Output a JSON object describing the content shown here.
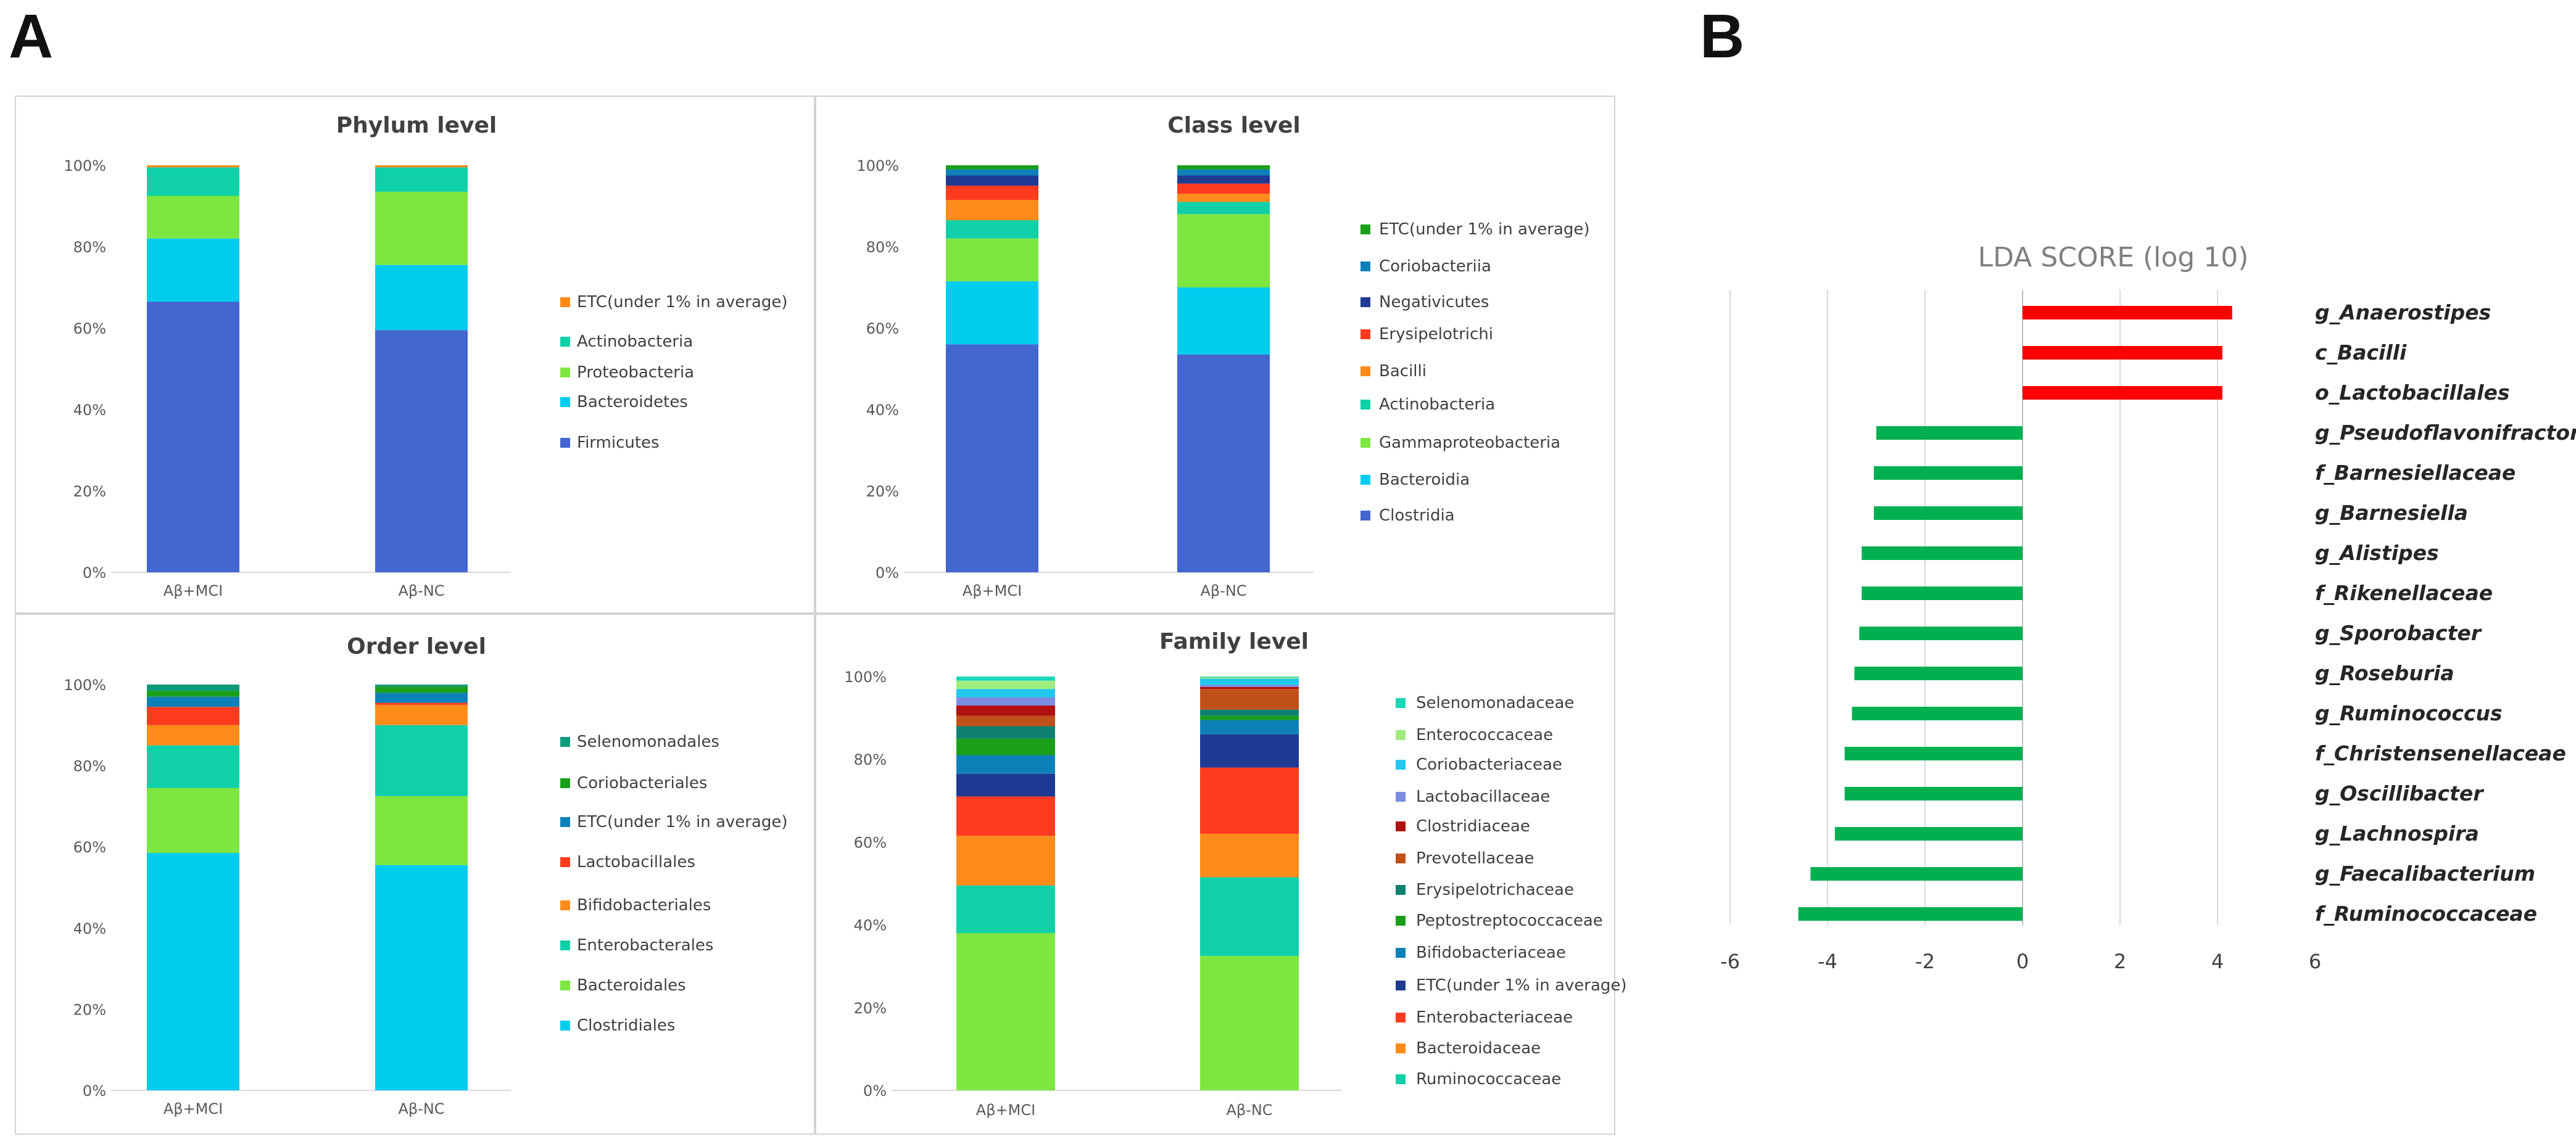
{
  "panels": {
    "a_label": "A",
    "b_label": "B"
  },
  "colors": {
    "Firmicutes": "#4466d0",
    "Bacteroidetes": "#00ccee",
    "Proteobacteria": "#7ee640",
    "Actinobacteria": "#10d0a8",
    "ETC": "#ff8c1a",
    "lda_positive": "#ff0000",
    "lda_negative": "#00b050"
  },
  "chart_data": [
    {
      "type": "bar",
      "stacked": true,
      "title": "Phylum level",
      "categories": [
        "Aβ+MCI",
        "Aβ-NC"
      ],
      "yticks": [
        "0%",
        "20%",
        "40%",
        "60%",
        "80%",
        "100%"
      ],
      "ylim": [
        0,
        100
      ],
      "series": [
        {
          "name": "Firmicutes",
          "color": "#4466d0",
          "values": [
            66.5,
            59.5
          ]
        },
        {
          "name": "Bacteroidetes",
          "color": "#00ccee",
          "values": [
            15.5,
            16.0
          ]
        },
        {
          "name": "Proteobacteria",
          "color": "#7ee640",
          "values": [
            10.5,
            18.0
          ]
        },
        {
          "name": "Actinobacteria",
          "color": "#10d0a8",
          "values": [
            7.0,
            6.0
          ]
        },
        {
          "name": "ETC(under 1% in average)",
          "color": "#ff8c1a",
          "values": [
            0.5,
            0.5
          ]
        }
      ]
    },
    {
      "type": "bar",
      "stacked": true,
      "title": "Class level",
      "categories": [
        "Aβ+MCI",
        "Aβ-NC"
      ],
      "yticks": [
        "0%",
        "20%",
        "40%",
        "60%",
        "80%",
        "100%"
      ],
      "ylim": [
        0,
        100
      ],
      "series": [
        {
          "name": "Clostridia",
          "color": "#4466d0",
          "values": [
            56.0,
            53.5
          ]
        },
        {
          "name": "Bacteroidia",
          "color": "#00ccee",
          "values": [
            15.5,
            16.5
          ]
        },
        {
          "name": "Gammaproteobacteria",
          "color": "#7ee640",
          "values": [
            10.5,
            18.0
          ]
        },
        {
          "name": "Actinobacteria",
          "color": "#10d0a8",
          "values": [
            4.5,
            3.0
          ]
        },
        {
          "name": "Bacilli",
          "color": "#ff8c1a",
          "values": [
            5.0,
            2.0
          ]
        },
        {
          "name": "Erysipelotrichi",
          "color": "#ff3b1f",
          "values": [
            3.5,
            2.5
          ]
        },
        {
          "name": "Negativicutes",
          "color": "#1f3a93",
          "values": [
            2.5,
            2.0
          ]
        },
        {
          "name": "Coriobacteriia",
          "color": "#0e80b8",
          "values": [
            1.5,
            1.5
          ]
        },
        {
          "name": "ETC(under 1% in average)",
          "color": "#1a9f1a",
          "values": [
            1.0,
            1.0
          ]
        }
      ]
    },
    {
      "type": "bar",
      "stacked": true,
      "title": "Order level",
      "categories": [
        "Aβ+MCI",
        "Aβ-NC"
      ],
      "yticks": [
        "0%",
        "20%",
        "40%",
        "60%",
        "80%",
        "100%"
      ],
      "ylim": [
        0,
        100
      ],
      "series": [
        {
          "name": "Clostridiales",
          "color": "#00ccee",
          "values": [
            58.5,
            55.5
          ]
        },
        {
          "name": "Bacteroidales",
          "color": "#7ee640",
          "values": [
            16.0,
            17.0
          ]
        },
        {
          "name": "Enterobacterales",
          "color": "#10d0a8",
          "values": [
            10.5,
            17.5
          ]
        },
        {
          "name": "Bifidobacteriales",
          "color": "#ff8c1a",
          "values": [
            5.0,
            5.0
          ]
        },
        {
          "name": "Lactobacillales",
          "color": "#ff3b1f",
          "values": [
            4.5,
            0.5
          ]
        },
        {
          "name": "ETC(under 1% in average)",
          "color": "#0e80b8",
          "values": [
            2.5,
            2.5
          ]
        },
        {
          "name": "Coriobacteriales",
          "color": "#1a9f1a",
          "values": [
            1.5,
            1.5
          ]
        },
        {
          "name": "Selenomonadales",
          "color": "#0e9a7a",
          "values": [
            1.5,
            0.5
          ]
        }
      ]
    },
    {
      "type": "bar",
      "stacked": true,
      "title": "Family level",
      "categories": [
        "Aβ+MCI",
        "Aβ-NC"
      ],
      "yticks": [
        "0%",
        "20%",
        "40%",
        "60%",
        "80%",
        "100%"
      ],
      "ylim": [
        0,
        100
      ],
      "series": [
        {
          "name": "",
          "color": "#7ee640",
          "values": [
            38.0,
            32.5
          ]
        },
        {
          "name": "Ruminococcaceae",
          "color": "#10d0a8",
          "values": [
            11.5,
            19.0
          ]
        },
        {
          "name": "Bacteroidaceae",
          "color": "#ff8c1a",
          "values": [
            12.0,
            10.5
          ]
        },
        {
          "name": "Enterobacteriaceae",
          "color": "#ff3b1f",
          "values": [
            9.5,
            16.0
          ]
        },
        {
          "name": "ETC(under 1% in average)",
          "color": "#1f3a93",
          "values": [
            5.5,
            8.0
          ]
        },
        {
          "name": "Bifidobacteriaceae",
          "color": "#0e80b8",
          "values": [
            4.5,
            3.5
          ]
        },
        {
          "name": "Peptostreptococcaceae",
          "color": "#1a9f1a",
          "values": [
            4.0,
            1.0
          ]
        },
        {
          "name": "Erysipelotrichaceae",
          "color": "#0e8070",
          "values": [
            3.0,
            1.5
          ]
        },
        {
          "name": "Prevotellaceae",
          "color": "#c0501a",
          "values": [
            2.5,
            5.0
          ]
        },
        {
          "name": "Clostridiaceae",
          "color": "#b01010",
          "values": [
            2.5,
            0.5
          ]
        },
        {
          "name": "Lactobacillaceae",
          "color": "#7a8de0",
          "values": [
            2.0,
            0.5
          ]
        },
        {
          "name": "Coriobacteriaceae",
          "color": "#20c8f0",
          "values": [
            2.0,
            1.5
          ]
        },
        {
          "name": "Enterococcaceae",
          "color": "#a0ec80",
          "values": [
            2.0,
            0.3
          ]
        },
        {
          "name": "Selenomonadaceae",
          "color": "#18d8b8",
          "values": [
            1.0,
            0.2
          ]
        }
      ]
    },
    {
      "type": "bar",
      "orientation": "horizontal",
      "title": "LDA SCORE (log 10)",
      "xlim": [
        -6,
        6
      ],
      "xticks": [
        "-6",
        "-4",
        "-2",
        "0",
        "2",
        "4",
        "6"
      ],
      "categories": [
        "g_Anaerostipes",
        "c_Bacilli",
        "o_Lactobacillales",
        "g_Pseudoflavonifractor",
        "f_Barnesiellaceae",
        "g_Barnesiella",
        "g_Alistipes",
        "f_Rikenellaceae",
        "g_Sporobacter",
        "g_Roseburia",
        "g_Ruminococcus",
        "f_Christensenellaceae",
        "g_Oscillibacter",
        "g_Lachnospira",
        "g_Faecalibacterium",
        "f_Ruminococcaceae"
      ],
      "values": [
        4.3,
        4.1,
        4.1,
        -3.0,
        -3.05,
        -3.05,
        -3.3,
        -3.3,
        -3.35,
        -3.45,
        -3.5,
        -3.65,
        -3.65,
        -3.85,
        -4.35,
        -4.6
      ]
    }
  ]
}
